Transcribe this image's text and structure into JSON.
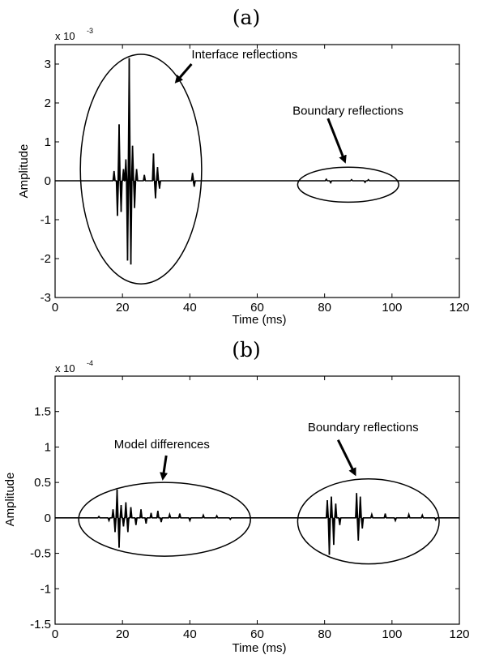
{
  "chart_data": [
    {
      "type": "line",
      "panel_label": "(a)",
      "xlabel": "Time (ms)",
      "ylabel": "Amplitude",
      "scale_factor": "x 10",
      "scale_exponent": "-3",
      "xlim": [
        0,
        120
      ],
      "ylim": [
        -3,
        3.5
      ],
      "x_ticks": [
        0,
        20,
        40,
        60,
        80,
        100,
        120
      ],
      "y_ticks": [
        -3,
        -2,
        -1,
        0,
        1,
        2,
        3
      ],
      "grid": false,
      "spikes": [
        {
          "t": 17.5,
          "a": 0.25
        },
        {
          "t": 18.5,
          "a": -0.9
        },
        {
          "t": 19.0,
          "a": 1.45
        },
        {
          "t": 19.6,
          "a": -0.8
        },
        {
          "t": 20.3,
          "a": 0.3
        },
        {
          "t": 21.0,
          "a": 0.55
        },
        {
          "t": 21.5,
          "a": -2.05
        },
        {
          "t": 22.0,
          "a": 3.15
        },
        {
          "t": 22.5,
          "a": -2.15
        },
        {
          "t": 23.0,
          "a": 0.9
        },
        {
          "t": 23.6,
          "a": -0.7
        },
        {
          "t": 24.2,
          "a": 0.3
        },
        {
          "t": 26.5,
          "a": 0.15
        },
        {
          "t": 29.2,
          "a": 0.7
        },
        {
          "t": 29.8,
          "a": -0.45
        },
        {
          "t": 30.4,
          "a": 0.35
        },
        {
          "t": 31.0,
          "a": -0.2
        },
        {
          "t": 40.8,
          "a": 0.2
        },
        {
          "t": 41.3,
          "a": -0.15
        },
        {
          "t": 80.5,
          "a": 0.04
        },
        {
          "t": 81.8,
          "a": -0.05
        },
        {
          "t": 88.0,
          "a": 0.03
        },
        {
          "t": 92.0,
          "a": -0.04
        },
        {
          "t": 93.0,
          "a": 0.03
        }
      ],
      "annotations": [
        {
          "text": "Interface reflections",
          "ellipse": {
            "cx": 25.5,
            "cy": 0.3,
            "rx": 18,
            "ry": 2.95
          },
          "text_x": 40.5,
          "text_y": 3.15,
          "arrow_from": [
            40.5,
            3.0
          ],
          "arrow_to": [
            36.0,
            2.55
          ]
        },
        {
          "text": "Boundary reflections",
          "ellipse": {
            "cx": 87,
            "cy": -0.1,
            "rx": 15,
            "ry": 0.45
          },
          "text_x": 70.5,
          "text_y": 1.7,
          "arrow_from": [
            81.0,
            1.6
          ],
          "arrow_to": [
            86.0,
            0.5
          ]
        }
      ]
    },
    {
      "type": "line",
      "panel_label": "(b)",
      "xlabel": "Time (ms)",
      "ylabel": "Amplitude",
      "scale_factor": "x 10",
      "scale_exponent": "-4",
      "xlim": [
        0,
        120
      ],
      "ylim": [
        -1.5,
        2
      ],
      "x_ticks": [
        0,
        20,
        40,
        60,
        80,
        100,
        120
      ],
      "y_ticks": [
        -1.5,
        -1,
        -0.5,
        0,
        0.5,
        1,
        1.5
      ],
      "grid": false,
      "spikes": [
        {
          "t": 13.0,
          "a": 0.02
        },
        {
          "t": 16.0,
          "a": -0.04
        },
        {
          "t": 17.2,
          "a": 0.12
        },
        {
          "t": 17.8,
          "a": -0.2
        },
        {
          "t": 18.4,
          "a": 0.4
        },
        {
          "t": 19.0,
          "a": -0.42
        },
        {
          "t": 19.6,
          "a": 0.18
        },
        {
          "t": 20.3,
          "a": -0.12
        },
        {
          "t": 21.0,
          "a": 0.22
        },
        {
          "t": 21.6,
          "a": -0.2
        },
        {
          "t": 22.5,
          "a": 0.15
        },
        {
          "t": 24.0,
          "a": -0.1
        },
        {
          "t": 25.5,
          "a": 0.12
        },
        {
          "t": 27.0,
          "a": -0.08
        },
        {
          "t": 28.5,
          "a": 0.07
        },
        {
          "t": 30.5,
          "a": 0.1
        },
        {
          "t": 31.5,
          "a": -0.06
        },
        {
          "t": 34.0,
          "a": 0.05
        },
        {
          "t": 37.0,
          "a": 0.06
        },
        {
          "t": 40.0,
          "a": -0.04
        },
        {
          "t": 44.0,
          "a": 0.04
        },
        {
          "t": 48.0,
          "a": 0.03
        },
        {
          "t": 52.0,
          "a": -0.02
        },
        {
          "t": 80.8,
          "a": 0.25
        },
        {
          "t": 81.4,
          "a": -0.52
        },
        {
          "t": 82.0,
          "a": 0.3
        },
        {
          "t": 82.7,
          "a": -0.38
        },
        {
          "t": 83.3,
          "a": 0.2
        },
        {
          "t": 84.5,
          "a": -0.1
        },
        {
          "t": 89.5,
          "a": 0.35
        },
        {
          "t": 90.0,
          "a": -0.32
        },
        {
          "t": 90.6,
          "a": 0.3
        },
        {
          "t": 91.2,
          "a": -0.15
        },
        {
          "t": 94.0,
          "a": 0.05
        },
        {
          "t": 98.0,
          "a": 0.06
        },
        {
          "t": 101.0,
          "a": -0.04
        },
        {
          "t": 105.0,
          "a": 0.05
        },
        {
          "t": 109.0,
          "a": 0.04
        },
        {
          "t": 113.0,
          "a": -0.03
        }
      ],
      "annotations": [
        {
          "text": "Model differences",
          "ellipse": {
            "cx": 32.5,
            "cy": -0.02,
            "rx": 25.5,
            "ry": 0.52
          },
          "text_x": 17.5,
          "text_y": 0.98,
          "arrow_from": [
            33.0,
            0.88
          ],
          "arrow_to": [
            32.0,
            0.56
          ]
        },
        {
          "text": "Boundary reflections",
          "ellipse": {
            "cx": 93,
            "cy": -0.05,
            "rx": 21,
            "ry": 0.6
          },
          "text_x": 75.0,
          "text_y": 1.22,
          "arrow_from": [
            84.0,
            1.1
          ],
          "arrow_to": [
            89.0,
            0.62
          ]
        }
      ]
    }
  ]
}
